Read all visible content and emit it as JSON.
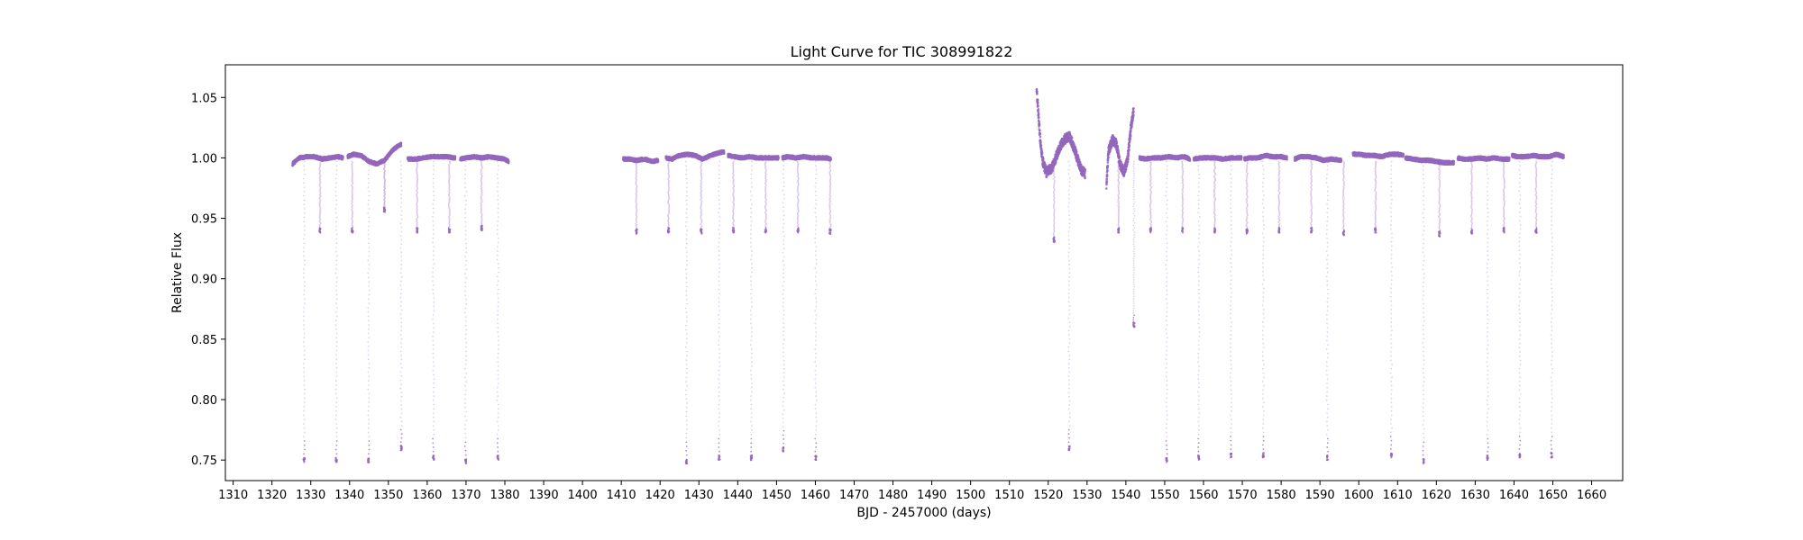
{
  "chart_data": {
    "type": "scatter",
    "title": "Light Curve for TIC 308991822",
    "xlabel": "BJD - 2457000 (days)",
    "ylabel": "Relative Flux",
    "xlim": [
      1308,
      1668
    ],
    "ylim": [
      0.733,
      1.077
    ],
    "x_ticks": [
      1310,
      1320,
      1330,
      1340,
      1350,
      1360,
      1370,
      1380,
      1390,
      1400,
      1410,
      1420,
      1430,
      1440,
      1450,
      1460,
      1470,
      1480,
      1490,
      1500,
      1510,
      1520,
      1530,
      1540,
      1550,
      1560,
      1570,
      1580,
      1590,
      1600,
      1610,
      1620,
      1630,
      1640,
      1650,
      1660
    ],
    "y_ticks": [
      0.75,
      0.8,
      0.85,
      0.9,
      0.95,
      1.0,
      1.05
    ],
    "grid": false,
    "legend": "none",
    "colors": {
      "points": "#9467bd"
    },
    "segments": [
      {
        "x": [
          1325.3,
          1327,
          1329,
          1331,
          1333,
          1335,
          1337,
          1338.3
        ],
        "y": [
          0.995,
          1.0,
          1.001,
          1.001,
          0.999,
          1.0,
          1.001,
          1.0
        ]
      },
      {
        "x": [
          1339.5,
          1341,
          1343,
          1345,
          1347,
          1349,
          1351,
          1352.5,
          1353.3
        ],
        "y": [
          1.001,
          1.003,
          1.002,
          0.997,
          0.995,
          0.998,
          1.006,
          1.01,
          1.011
        ]
      },
      {
        "x": [
          1355,
          1357,
          1359,
          1361,
          1363,
          1365,
          1367.2
        ],
        "y": [
          0.999,
          0.999,
          1.0,
          1.001,
          1.001,
          1.001,
          1.0
        ]
      },
      {
        "x": [
          1368.5,
          1370,
          1372,
          1374,
          1376,
          1378,
          1380,
          1381
        ],
        "y": [
          0.999,
          1.0,
          1.001,
          1.0,
          1.001,
          1.0,
          0.999,
          0.997
        ]
      },
      {
        "x": [
          1410.5,
          1412,
          1414,
          1416,
          1418,
          1419.5
        ],
        "y": [
          0.999,
          0.999,
          0.998,
          0.999,
          0.997,
          0.998
        ]
      },
      {
        "x": [
          1421.5,
          1423,
          1425,
          1427,
          1429,
          1431,
          1433,
          1435,
          1436.5
        ],
        "y": [
          1.0,
          0.999,
          1.002,
          1.003,
          1.002,
          0.999,
          1.002,
          1.004,
          1.005
        ]
      },
      {
        "x": [
          1437.5,
          1439,
          1441,
          1443,
          1445,
          1447,
          1449,
          1450.5
        ],
        "y": [
          1.002,
          1.001,
          1.0,
          1.001,
          1.0,
          1.0,
          1.0,
          1.0
        ]
      },
      {
        "x": [
          1451.5,
          1453,
          1455,
          1457,
          1459,
          1461,
          1463,
          1464
        ],
        "y": [
          1.0,
          1.001,
          1.0,
          1.001,
          1.0,
          1.0,
          1.0,
          0.999
        ]
      },
      {
        "x": [
          1517,
          1517.3,
          1517.8,
          1518.5,
          1519.5,
          1521,
          1522.5,
          1524,
          1525.5,
          1527,
          1528.5,
          1529.5
        ],
        "y": [
          1.057,
          1.045,
          1.02,
          0.998,
          0.988,
          0.992,
          1.005,
          1.015,
          1.018,
          1.005,
          0.99,
          0.987
        ]
      },
      {
        "x": [
          1535,
          1535.5,
          1536.5,
          1537.5,
          1538.5,
          1539.5,
          1540.5,
          1541.3,
          1542
        ],
        "y": [
          0.978,
          1.005,
          1.015,
          1.012,
          0.995,
          0.988,
          1.0,
          1.025,
          1.04
        ]
      },
      {
        "x": [
          1543.5,
          1545,
          1547,
          1549,
          1551,
          1553,
          1555,
          1556.5
        ],
        "y": [
          1.0,
          0.999,
          1.0,
          1.0,
          1.001,
          1.0,
          1.001,
          0.999
        ]
      },
      {
        "x": [
          1557.5,
          1559,
          1561,
          1563,
          1565,
          1567,
          1569,
          1569.8
        ],
        "y": [
          0.999,
          1.0,
          1.0,
          1.0,
          0.999,
          1.0,
          1.0,
          1.0
        ]
      },
      {
        "x": [
          1570.5,
          1572,
          1574,
          1576,
          1578,
          1580,
          1581.5
        ],
        "y": [
          0.999,
          1.0,
          1.0,
          1.002,
          1.001,
          1.001,
          1.0
        ]
      },
      {
        "x": [
          1583.5,
          1585,
          1587,
          1589,
          1591,
          1593,
          1595.5
        ],
        "y": [
          0.999,
          1.001,
          1.001,
          1.0,
          0.998,
          0.999,
          0.998
        ]
      },
      {
        "x": [
          1598.5,
          1600,
          1602,
          1604,
          1606,
          1608,
          1610,
          1611.5
        ],
        "y": [
          1.003,
          1.003,
          1.002,
          1.002,
          1.001,
          1.003,
          1.003,
          1.002
        ]
      },
      {
        "x": [
          1612,
          1614,
          1616,
          1618,
          1620,
          1622,
          1624.5
        ],
        "y": [
          1.0,
          0.999,
          0.998,
          0.998,
          0.997,
          0.996,
          0.996
        ]
      },
      {
        "x": [
          1625.5,
          1627,
          1629,
          1631,
          1633,
          1635,
          1637,
          1638.8
        ],
        "y": [
          1.0,
          0.999,
          0.999,
          1.0,
          0.999,
          1.0,
          0.999,
          0.999
        ]
      },
      {
        "x": [
          1639.5,
          1641,
          1643,
          1645,
          1647,
          1649,
          1651,
          1652.8
        ],
        "y": [
          1.002,
          1.001,
          1.001,
          1.002,
          1.001,
          1.001,
          1.003,
          1.001
        ]
      }
    ],
    "primary_eclipses_min": [
      1328.3,
      1336.6,
      1344.9,
      1353.3,
      1361.6,
      1369.9,
      1378.2,
      1426.8,
      1435.2,
      1443.5,
      1451.8,
      1460.1,
      1525.4,
      1550.5,
      1558.8,
      1567.1,
      1575.4,
      1591.9,
      1608.4,
      1616.7,
      1633.2,
      1641.5,
      1649.7
    ],
    "primary_eclipse_depths": [
      0.748,
      0.748,
      0.748,
      0.758,
      0.75,
      0.747,
      0.75,
      0.747,
      0.75,
      0.75,
      0.757,
      0.75,
      0.758,
      0.748,
      0.75,
      0.752,
      0.752,
      0.75,
      0.752,
      0.747,
      0.75,
      0.752,
      0.752
    ],
    "secondary_eclipses_min": [
      1332.4,
      1340.7,
      1349.0,
      1357.4,
      1365.7,
      1374.0,
      1413.9,
      1422.2,
      1430.6,
      1438.9,
      1447.2,
      1455.5,
      1463.8,
      1521.5,
      1538.1,
      1546.4,
      1554.6,
      1562.9,
      1571.2,
      1579.5,
      1587.8,
      1596.1,
      1604.3,
      1620.8,
      1629.1,
      1637.4,
      1645.7
    ],
    "secondary_eclipse_depths": [
      0.938,
      0.938,
      0.955,
      0.938,
      0.938,
      0.94,
      0.937,
      0.938,
      0.937,
      0.938,
      0.938,
      0.938,
      0.937,
      0.93,
      0.938,
      0.938,
      0.938,
      0.938,
      0.937,
      0.938,
      0.938,
      0.936,
      0.938,
      0.935,
      0.937,
      0.938,
      0.938
    ],
    "extra_dips": [
      {
        "x": 1542.1,
        "y": 0.86
      }
    ]
  }
}
